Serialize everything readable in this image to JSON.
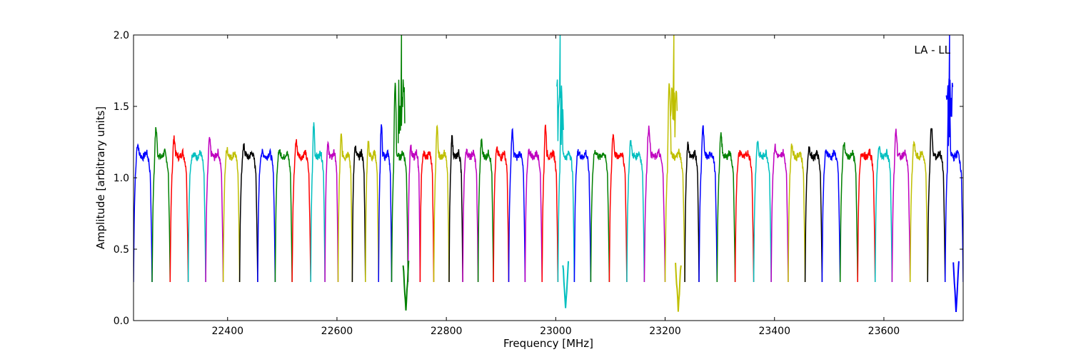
{
  "chart_data": {
    "type": "line",
    "title": "",
    "xlabel": "Frequency [MHz]",
    "ylabel": "Amplitude [arbitrary units]",
    "annotation": "LA - LL",
    "xlim": [
      22228,
      23745
    ],
    "ylim": [
      0.0,
      2.0
    ],
    "xticks": [
      22400,
      22600,
      22800,
      23000,
      23200,
      23400,
      23600
    ],
    "yticks": [
      0.0,
      0.5,
      1.0,
      1.5,
      2.0
    ],
    "xtick_labels": [
      "22400",
      "22600",
      "22800",
      "23000",
      "23200",
      "23400",
      "23600"
    ],
    "ytick_labels": [
      "0.0",
      "0.5",
      "1.0",
      "1.5",
      "2.0"
    ],
    "grid": false,
    "series_colors": [
      "#0000ff",
      "#008000",
      "#ff0000",
      "#00bfbf",
      "#bf00bf",
      "#bfbf00",
      "#000000"
    ],
    "channel_profile": {
      "description_of_shape": "each spectral window: steep rise at low edge, peak, flat plateau, steep fall at high edge",
      "x": [
        0.0,
        0.04,
        0.1,
        0.18,
        0.3,
        0.5,
        0.7,
        0.82,
        0.9,
        0.96,
        1.0
      ],
      "y": [
        0.27,
        0.75,
        1.02,
        1.12,
        1.17,
        1.14,
        1.18,
        1.12,
        1.03,
        0.65,
        0.27
      ]
    },
    "windows": [
      {
        "x0": 22228,
        "x1": 22262,
        "color": "#0000ff",
        "peak": 1.27
      },
      {
        "x0": 22262,
        "x1": 22295,
        "color": "#008000",
        "peak": 1.38
      },
      {
        "x0": 22295,
        "x1": 22328,
        "color": "#ff0000",
        "peak": 1.31
      },
      {
        "x0": 22328,
        "x1": 22360,
        "color": "#00bfbf",
        "peak": 1.19
      },
      {
        "x0": 22360,
        "x1": 22392,
        "color": "#bf00bf",
        "peak": 1.3
      },
      {
        "x0": 22392,
        "x1": 22422,
        "color": "#bfbf00",
        "peak": 1.23
      },
      {
        "x0": 22422,
        "x1": 22455,
        "color": "#000000",
        "peak": 1.26
      },
      {
        "x0": 22455,
        "x1": 22487,
        "color": "#0000ff",
        "peak": 1.21
      },
      {
        "x0": 22487,
        "x1": 22518,
        "color": "#008000",
        "peak": 1.22
      },
      {
        "x0": 22518,
        "x1": 22552,
        "color": "#ff0000",
        "peak": 1.29
      },
      {
        "x0": 22552,
        "x1": 22578,
        "color": "#00bfbf",
        "peak": 1.41
      },
      {
        "x0": 22578,
        "x1": 22602,
        "color": "#bf00bf",
        "peak": 1.28
      },
      {
        "x0": 22602,
        "x1": 22628,
        "color": "#bfbf00",
        "peak": 1.33
      },
      {
        "x0": 22628,
        "x1": 22652,
        "color": "#000000",
        "peak": 1.26
      },
      {
        "x0": 22652,
        "x1": 22676,
        "color": "#bfbf00",
        "peak": 1.29
      },
      {
        "x0": 22676,
        "x1": 22700,
        "color": "#0000ff",
        "peak": 1.41
      },
      {
        "x0": 22700,
        "x1": 22730,
        "color": "#008000",
        "peak": 1.69
      },
      {
        "x0": 22730,
        "x1": 22752,
        "color": "#bf00bf",
        "peak": 1.27
      },
      {
        "x0": 22752,
        "x1": 22777,
        "color": "#ff0000",
        "peak": 1.19
      },
      {
        "x0": 22777,
        "x1": 22805,
        "color": "#bfbf00",
        "peak": 1.38
      },
      {
        "x0": 22805,
        "x1": 22830,
        "color": "#000000",
        "peak": 1.32
      },
      {
        "x0": 22830,
        "x1": 22858,
        "color": "#bf00bf",
        "peak": 1.22
      },
      {
        "x0": 22858,
        "x1": 22886,
        "color": "#008000",
        "peak": 1.29
      },
      {
        "x0": 22886,
        "x1": 22914,
        "color": "#ff0000",
        "peak": 1.23
      },
      {
        "x0": 22914,
        "x1": 22944,
        "color": "#0000ff",
        "peak": 1.36
      },
      {
        "x0": 22944,
        "x1": 22975,
        "color": "#bf00bf",
        "peak": 1.21
      },
      {
        "x0": 22975,
        "x1": 23004,
        "color": "#ff0000",
        "peak": 1.4
      },
      {
        "x0": 23004,
        "x1": 23034,
        "color": "#00bfbf",
        "peak": 1.68
      },
      {
        "x0": 23034,
        "x1": 23064,
        "color": "#0000ff",
        "peak": 1.21
      },
      {
        "x0": 23064,
        "x1": 23098,
        "color": "#008000",
        "peak": 1.22
      },
      {
        "x0": 23098,
        "x1": 23130,
        "color": "#ff0000",
        "peak": 1.34
      },
      {
        "x0": 23130,
        "x1": 23162,
        "color": "#00bfbf",
        "peak": 1.29
      },
      {
        "x0": 23162,
        "x1": 23200,
        "color": "#bf00bf",
        "peak": 1.39
      },
      {
        "x0": 23200,
        "x1": 23236,
        "color": "#bfbf00",
        "peak": 1.7
      },
      {
        "x0": 23236,
        "x1": 23262,
        "color": "#000000",
        "peak": 1.28
      },
      {
        "x0": 23262,
        "x1": 23295,
        "color": "#0000ff",
        "peak": 1.39
      },
      {
        "x0": 23295,
        "x1": 23328,
        "color": "#008000",
        "peak": 1.33
      },
      {
        "x0": 23328,
        "x1": 23362,
        "color": "#ff0000",
        "peak": 1.2
      },
      {
        "x0": 23362,
        "x1": 23394,
        "color": "#00bfbf",
        "peak": 1.29
      },
      {
        "x0": 23394,
        "x1": 23425,
        "color": "#bf00bf",
        "peak": 1.25
      },
      {
        "x0": 23425,
        "x1": 23456,
        "color": "#bfbf00",
        "peak": 1.26
      },
      {
        "x0": 23456,
        "x1": 23487,
        "color": "#000000",
        "peak": 1.23
      },
      {
        "x0": 23487,
        "x1": 23520,
        "color": "#0000ff",
        "peak": 1.22
      },
      {
        "x0": 23520,
        "x1": 23552,
        "color": "#008000",
        "peak": 1.27
      },
      {
        "x0": 23552,
        "x1": 23584,
        "color": "#ff0000",
        "peak": 1.2
      },
      {
        "x0": 23584,
        "x1": 23615,
        "color": "#00bfbf",
        "peak": 1.24
      },
      {
        "x0": 23615,
        "x1": 23648,
        "color": "#bf00bf",
        "peak": 1.36
      },
      {
        "x0": 23648,
        "x1": 23680,
        "color": "#bfbf00",
        "peak": 1.28
      },
      {
        "x0": 23680,
        "x1": 23712,
        "color": "#000000",
        "peak": 1.4
      },
      {
        "x0": 23712,
        "x1": 23745,
        "color": "#0000ff",
        "peak": 1.71
      }
    ],
    "spikes": [
      {
        "x": 22718,
        "ymax": 2.0,
        "color": "#008000"
      },
      {
        "x": 23008,
        "ymax": 2.0,
        "color": "#00bfbf"
      },
      {
        "x": 23216,
        "ymax": 2.0,
        "color": "#bfbf00"
      },
      {
        "x": 23720,
        "ymax": 2.0,
        "color": "#0000ff"
      }
    ],
    "dips": [
      {
        "x": 22726,
        "ymin": 0.07,
        "color": "#008000"
      },
      {
        "x": 23018,
        "ymin": 0.1,
        "color": "#00bfbf"
      },
      {
        "x": 23224,
        "ymin": 0.07,
        "color": "#bfbf00"
      },
      {
        "x": 23732,
        "ymin": 0.06,
        "color": "#0000ff"
      }
    ]
  }
}
